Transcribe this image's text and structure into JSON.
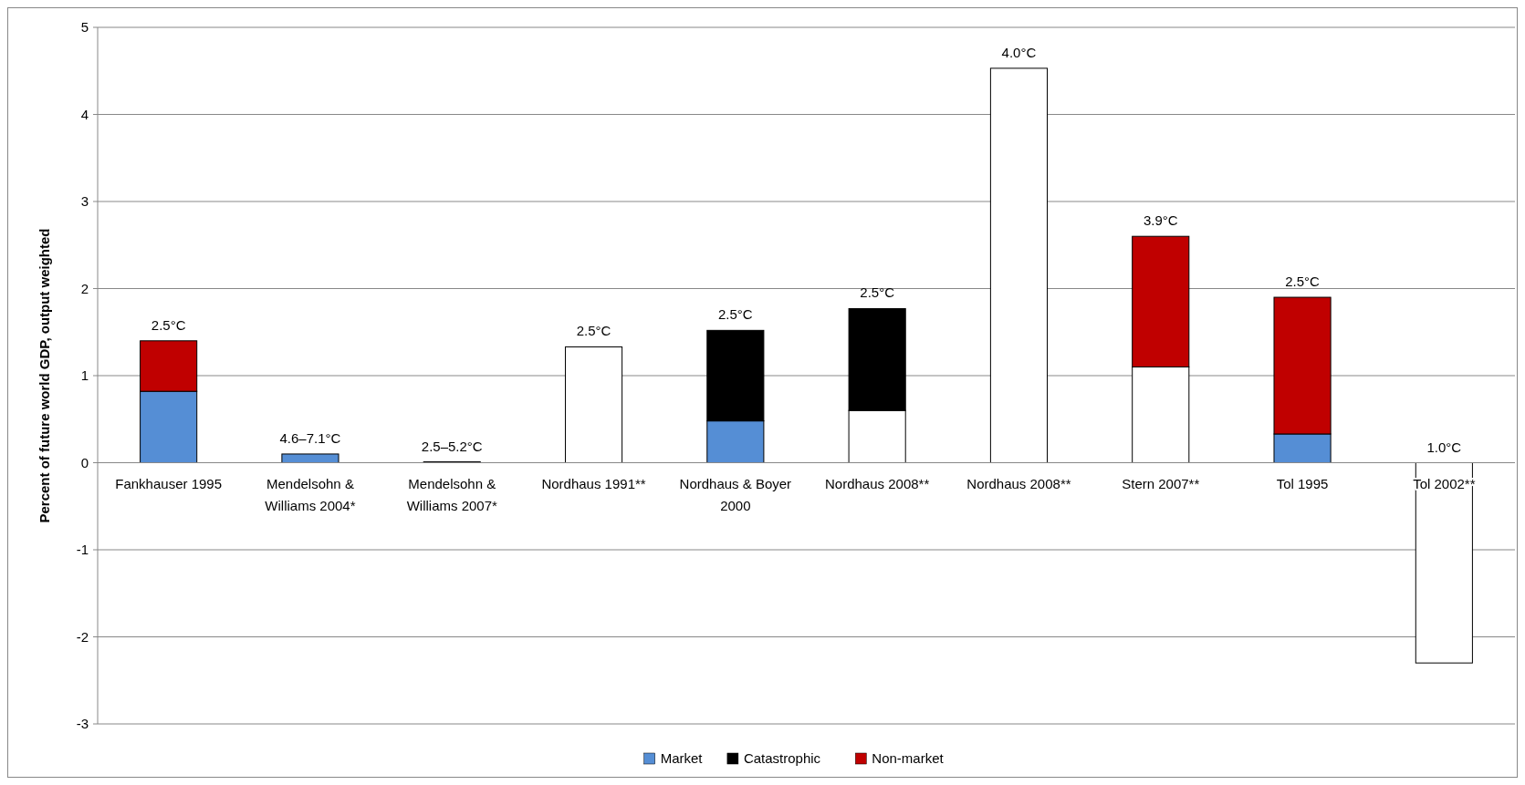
{
  "chart_data": {
    "type": "bar",
    "stacked": true,
    "ylabel": "Percent of future world GDP, output weighted",
    "categories": [
      "Fankhauser 1995",
      "Mendelsohn & Williams 2004*",
      "Mendelsohn & Williams 2007*",
      "Nordhaus 1991**",
      "Nordhaus & Boyer 2000",
      "Nordhaus 2008**",
      "Nordhaus 2008**",
      "Stern 2007**",
      "Tol 1995",
      "Tol 2002**"
    ],
    "series": [
      {
        "name": "Market",
        "color": "#558ed5",
        "values": [
          0.82,
          0.1,
          0.01,
          null,
          0.48,
          null,
          null,
          null,
          0.33,
          null
        ]
      },
      {
        "color": "#ffffff",
        "values": [
          null,
          null,
          null,
          1.33,
          null,
          0.6,
          4.53,
          1.1,
          null,
          -2.3
        ]
      },
      {
        "name": "Catastrophic",
        "color": "#000000",
        "values": [
          null,
          null,
          null,
          null,
          1.04,
          1.17,
          null,
          null,
          null,
          null
        ]
      },
      {
        "name": "Non-market",
        "color": "#c00000",
        "values": [
          0.58,
          null,
          null,
          null,
          null,
          null,
          null,
          1.5,
          1.57,
          null
        ]
      }
    ],
    "ylim": [
      -3,
      5
    ],
    "yticks": [
      -3,
      -2,
      -1,
      0,
      1,
      2,
      3,
      4,
      5
    ],
    "grid": "y",
    "legend": "bottom",
    "annotations": [
      "2.5°C",
      "4.6–7.1°C",
      "2.5–5.2°C",
      "2.5°C",
      "2.5°C",
      "2.5°C",
      "4.0°C",
      "3.9°C",
      "2.5°C",
      "1.0°C"
    ]
  }
}
